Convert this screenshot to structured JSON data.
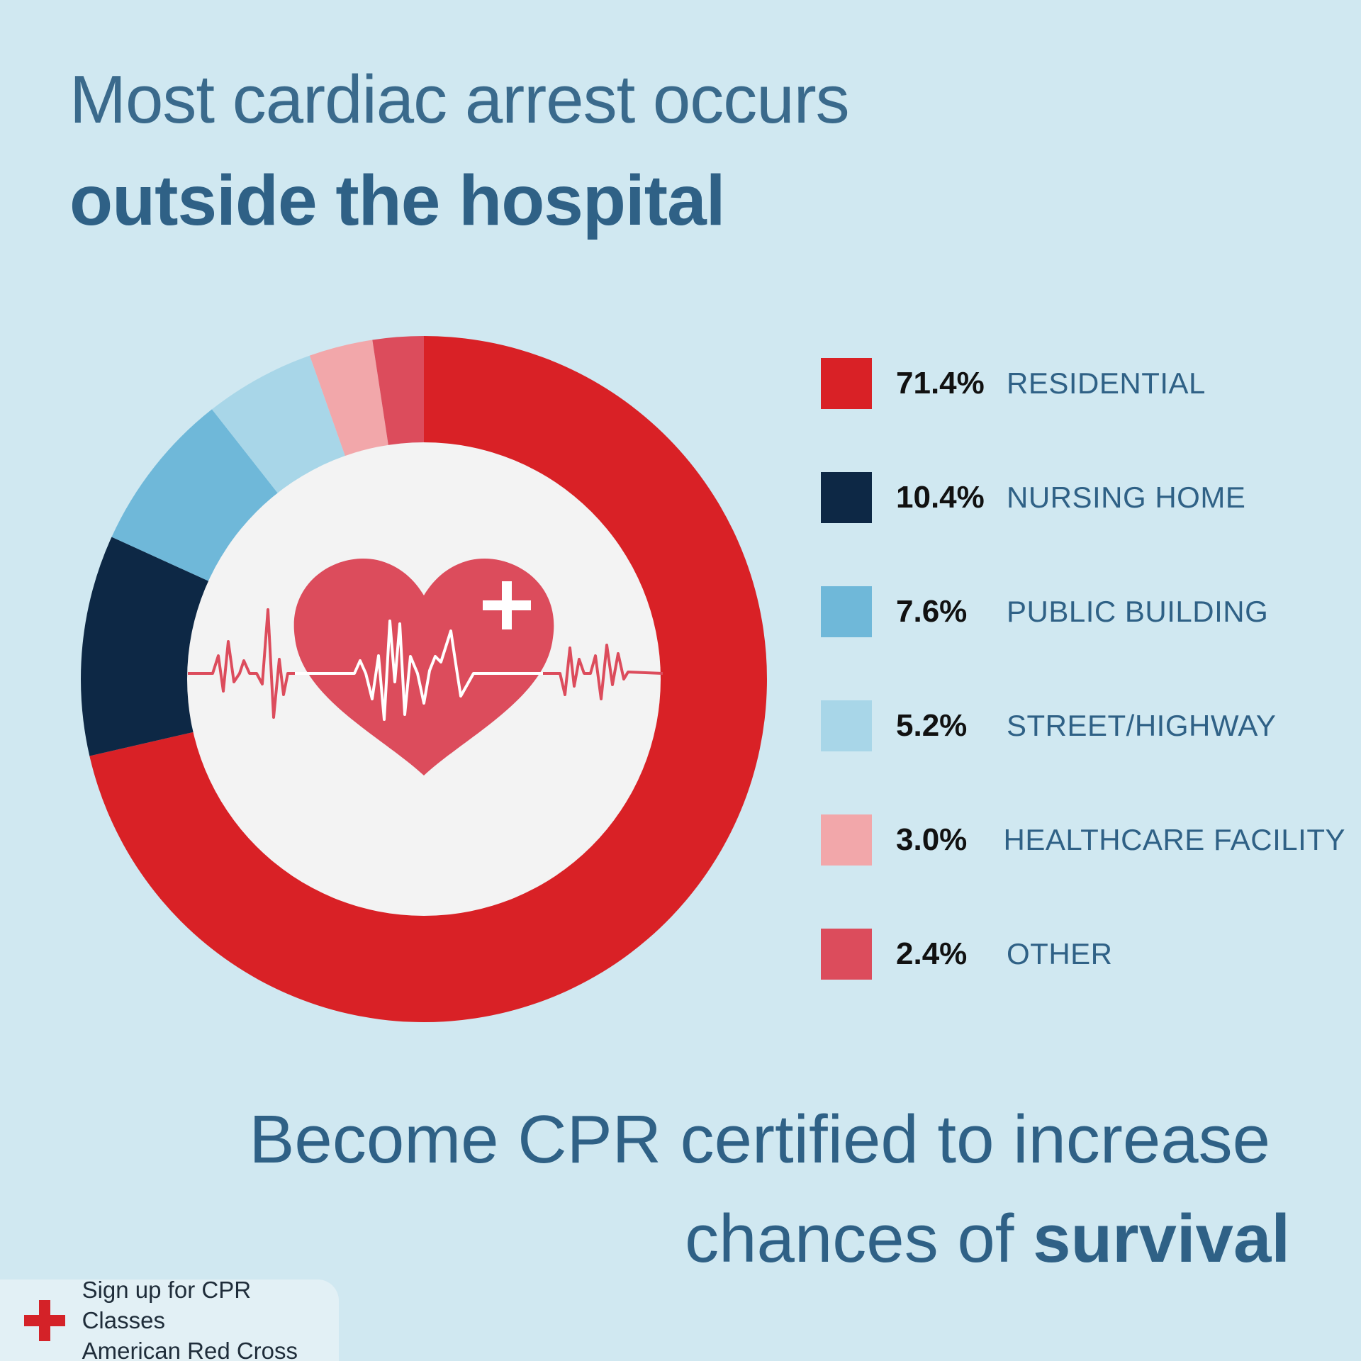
{
  "header": {
    "title_line1": "Most cardiac arrest occurs",
    "title_line2": "outside the hospital"
  },
  "chart_data": {
    "type": "pie",
    "variant": "donut",
    "title": "",
    "categories": [
      "RESIDENTIAL",
      "NURSING HOME",
      "PUBLIC BUILDING",
      "STREET/HIGHWAY",
      "HEALTHCARE FACILITY",
      "OTHER"
    ],
    "values": [
      71.4,
      10.4,
      7.6,
      5.2,
      3.0,
      2.4
    ],
    "value_labels": [
      "71.4%",
      "10.4%",
      "7.6%",
      "5.2%",
      "3.0%",
      "2.4%"
    ],
    "colors": [
      "#d92126",
      "#0d2845",
      "#6fb8d9",
      "#a8d6e8",
      "#f2a7aa",
      "#dc4c5c"
    ],
    "start": "12 o'clock",
    "direction": "clockwise",
    "legend": "right"
  },
  "center_icon": {
    "name": "heart-with-cross-and-heartbeat-icon",
    "heart_color": "#dc4c5c",
    "center_fill": "#f3f3f3"
  },
  "cta": {
    "line1": "Become CPR certified to increase",
    "line2_regular": "chances of ",
    "line2_bold": "survival"
  },
  "signup": {
    "line1": "Sign up for CPR Classes",
    "line2": "American Red Cross",
    "icon": "red-cross-icon",
    "icon_color": "#d42228"
  }
}
